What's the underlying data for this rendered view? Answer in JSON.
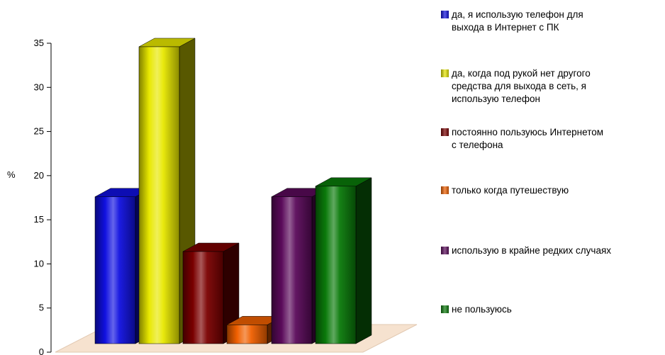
{
  "chart_data": {
    "type": "bar",
    "title": "",
    "xlabel": "",
    "ylabel": "%",
    "ylim": [
      0,
      35
    ],
    "yticks": [
      0,
      5,
      10,
      15,
      20,
      25,
      30,
      35
    ],
    "grid": false,
    "legend_position": "right",
    "three_d": true,
    "series": [
      {
        "name": "да, я использую телефон для выхода в Интернет с ПК",
        "value": 17.6,
        "color": "#1010e0"
      },
      {
        "name": "да, когда под рукой нет другого средства для выхода в сеть, я использую телефон",
        "value": 34.6,
        "color": "#e8e800"
      },
      {
        "name": "постоянно пользуюсь Интернетом с телефона",
        "value": 11.4,
        "color": "#7a0000"
      },
      {
        "name": "только когда путешествую",
        "value": 3.1,
        "color": "#f06000"
      },
      {
        "name": "использую в крайне редких случаях",
        "value": 17.6,
        "color": "#5a0a5a"
      },
      {
        "name": "не пользуюсь",
        "value": 18.8,
        "color": "#0a7a0a"
      }
    ]
  },
  "legend": {
    "items": [
      {
        "text": "да, я использую телефон для\nвыхода в Интернет с ПК",
        "color": "#1010e0"
      },
      {
        "text": "да, когда под рукой нет другого\nсредства для выхода в сеть, я\nиспользую телефон",
        "color": "#e8e800"
      },
      {
        "text": "постоянно пользуюсь Интернетом\nс телефона",
        "color": "#7a0000"
      },
      {
        "text": "только когда путешествую",
        "color": "#f06000"
      },
      {
        "text": "использую в крайне редких случаях",
        "color": "#5a0a5a"
      },
      {
        "text": "не пользуюсь",
        "color": "#0a7a0a"
      }
    ]
  }
}
